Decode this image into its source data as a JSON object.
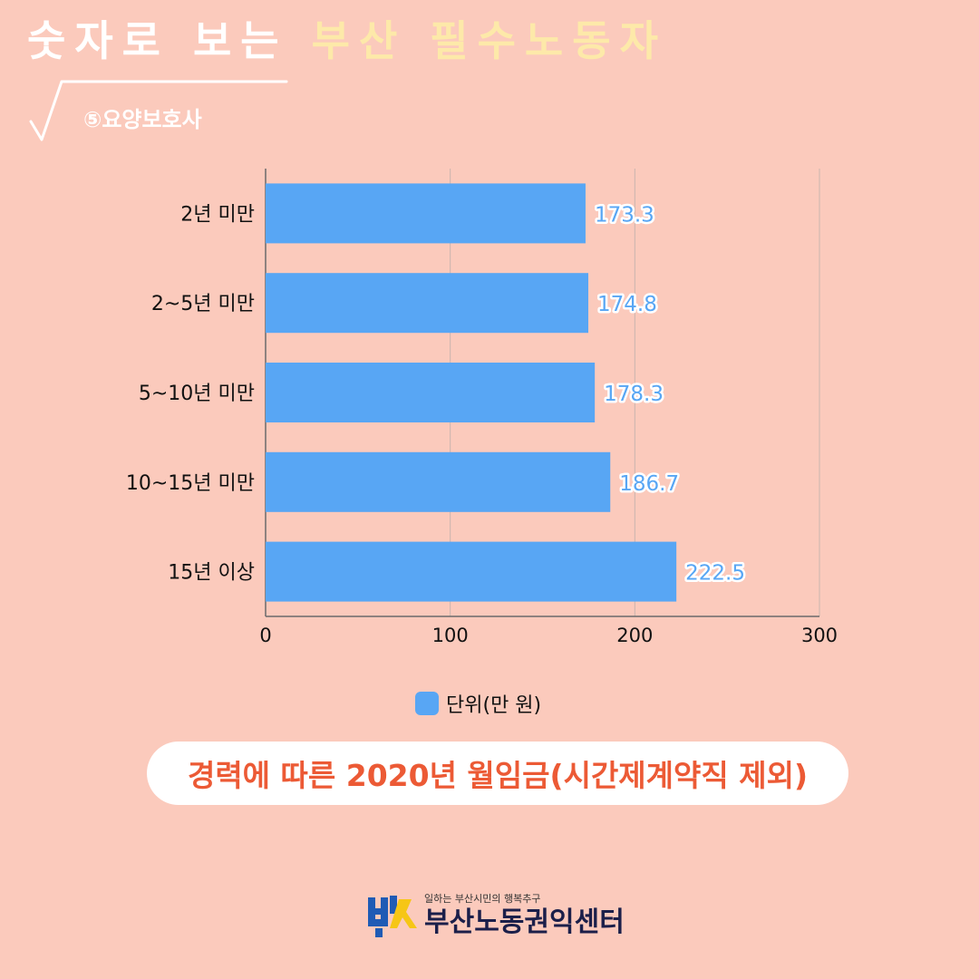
{
  "header": {
    "title_white": "숫자로 보는",
    "title_yellow": "부산 필수노동자",
    "subtitle": "⑤요양보호사"
  },
  "chart_data": {
    "type": "bar",
    "orientation": "horizontal",
    "categories": [
      "2년 미만",
      "2~5년 미만",
      "5~10년 미만",
      "10~15년 미만",
      "15년 이상"
    ],
    "series": [
      {
        "name": "단위(만 원)",
        "values": [
          173.3,
          174.8,
          178.3,
          186.7,
          222.5
        ]
      }
    ],
    "data_labels": [
      "173.3",
      "174.8",
      "178.3",
      "186.7",
      "222.5"
    ],
    "xlim": [
      0,
      300
    ],
    "xticks": [
      0,
      100,
      200,
      300
    ],
    "grid": true,
    "legend_placement": "bottom",
    "colors": {
      "bar": "#58a6f4",
      "grid": "#c9b5ae",
      "axis": "#6b6b6b"
    }
  },
  "legend": {
    "label": "단위(만 원)"
  },
  "caption": {
    "text": "경력에 따른 2020년 월임금(시간제계약직 제외)"
  },
  "logo": {
    "tagline": "일하는 부산시민의 행복추구",
    "name": "부산노동권익센터",
    "icon": "busan-labor-center-logo"
  },
  "colors": {
    "background": "#fbcabc",
    "title_white": "#ffffff",
    "title_yellow": "#fde9a9",
    "caption_red": "#ec5a35"
  }
}
